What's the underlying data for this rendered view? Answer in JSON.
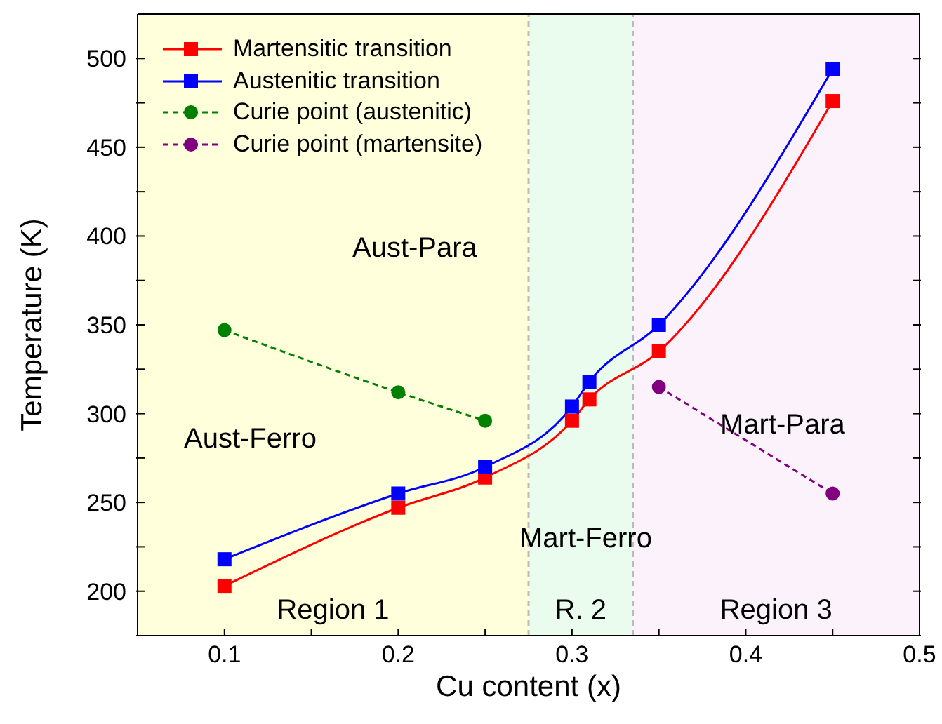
{
  "chart_data": {
    "type": "line",
    "xlabel": "Cu content (x)",
    "ylabel": "Temperature (K)",
    "xlim": [
      0.05,
      0.5
    ],
    "xticks": [
      {
        "value": 0.05,
        "label": null
      },
      0.1,
      {
        "value": 0.15,
        "label": null
      },
      0.2,
      {
        "value": 0.25,
        "label": null
      },
      0.3,
      {
        "value": 0.35,
        "label": null
      },
      0.4,
      {
        "value": 0.45,
        "label": null
      },
      0.5
    ],
    "ylim": [
      175,
      525
    ],
    "yticks": [
      {
        "value": 175,
        "label": null
      },
      200,
      {
        "value": 225,
        "label": null
      },
      250,
      {
        "value": 275,
        "label": null
      },
      300,
      {
        "value": 325,
        "label": null
      },
      350,
      {
        "value": 375,
        "label": null
      },
      400,
      {
        "value": 425,
        "label": null
      },
      450,
      {
        "value": 475,
        "label": null
      },
      500
    ],
    "series": [
      {
        "name": "Martensitic transition",
        "color": "#ff0000",
        "x": [
          0.1,
          0.2,
          0.25,
          0.3,
          0.31,
          0.35,
          0.45
        ],
        "values": [
          203,
          247,
          264,
          296,
          308,
          335,
          476
        ],
        "marker": "square",
        "line_style": "solid"
      },
      {
        "name": "Austenitic transition",
        "color": "#0000ff",
        "x": [
          0.1,
          0.2,
          0.25,
          0.3,
          0.31,
          0.35,
          0.45
        ],
        "values": [
          218,
          255,
          270,
          304,
          318,
          350,
          494
        ],
        "marker": "square",
        "line_style": "solid"
      },
      {
        "name": "Curie point (austenitic)",
        "color": "#008000",
        "x": [
          0.1,
          0.2,
          0.25
        ],
        "values": [
          347,
          312,
          296
        ],
        "marker": "circle",
        "line_style": "dashed"
      },
      {
        "name": "Curie point (martensite)",
        "color": "#800080",
        "x": [
          0.35,
          0.45
        ],
        "values": [
          315,
          255
        ],
        "marker": "circle",
        "line_style": "dashed"
      }
    ],
    "bands": [
      {
        "axis": "x",
        "from": 0.05,
        "to": 0.275,
        "label": "Region 1",
        "color": "#ffffdc"
      },
      {
        "axis": "x",
        "from": 0.275,
        "to": 0.335,
        "label": "R. 2",
        "color": "#eafcee"
      },
      {
        "axis": "x",
        "from": 0.335,
        "to": 0.5,
        "label": "Region 3",
        "color": "#fcf2fc"
      }
    ],
    "ref_lines": [
      {
        "axis": "x",
        "value": 0.275,
        "color": "#bbbbbb",
        "line_style": "dashed"
      },
      {
        "axis": "x",
        "value": 0.335,
        "color": "#bbbbbb",
        "line_style": "dashed"
      }
    ],
    "annotations": [
      "Aust-Para",
      "Aust-Ferro",
      "Mart-Ferro",
      "Mart-Para"
    ],
    "legend": "top left",
    "grid": false
  }
}
